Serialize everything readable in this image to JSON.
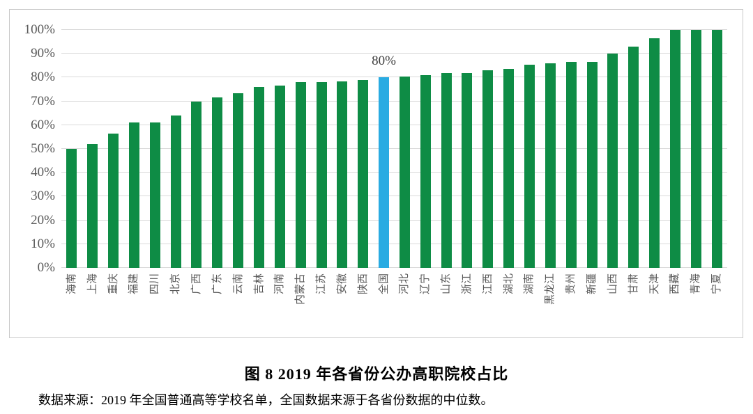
{
  "figure": {
    "title": "图 8 2019 年各省份公办高职院校占比",
    "caption": "数据来源：2019 年全国普通高等学校名单，全国数据来源于各省份数据的中位数。"
  },
  "chart_data": {
    "type": "bar",
    "title": "图 8 2019 年各省份公办高职院校占比",
    "categories": [
      "海南",
      "上海",
      "重庆",
      "福建",
      "四川",
      "北京",
      "广西",
      "广东",
      "云南",
      "吉林",
      "河南",
      "内蒙古",
      "江苏",
      "安徽",
      "陕西",
      "全国",
      "河北",
      "辽宁",
      "山东",
      "浙江",
      "江西",
      "湖北",
      "湖南",
      "黑龙江",
      "贵州",
      "新疆",
      "山西",
      "甘肃",
      "天津",
      "西藏",
      "青海",
      "宁夏"
    ],
    "values": [
      50,
      52,
      56.5,
      61,
      61,
      64,
      70,
      71.5,
      73.5,
      76,
      76.5,
      78,
      78,
      78.5,
      79,
      80,
      80.5,
      81,
      82,
      82,
      83,
      83.5,
      85.5,
      86,
      86.5,
      86.5,
      90,
      93,
      96.5,
      100,
      100,
      100
    ],
    "highlight_category": "全国",
    "annotation": {
      "category": "全国",
      "text": "80%"
    },
    "ylabel_ticks": [
      "0%",
      "10%",
      "20%",
      "30%",
      "40%",
      "50%",
      "60%",
      "70%",
      "80%",
      "90%",
      "100%"
    ],
    "ylim": [
      0,
      100
    ],
    "grid": true,
    "legend": false,
    "colors": {
      "bar": "#0e8c45",
      "highlight": "#29abe2",
      "gridline": "#d9d9d9",
      "tick_label": "#595959",
      "annotation": "#3f3f3f"
    }
  }
}
